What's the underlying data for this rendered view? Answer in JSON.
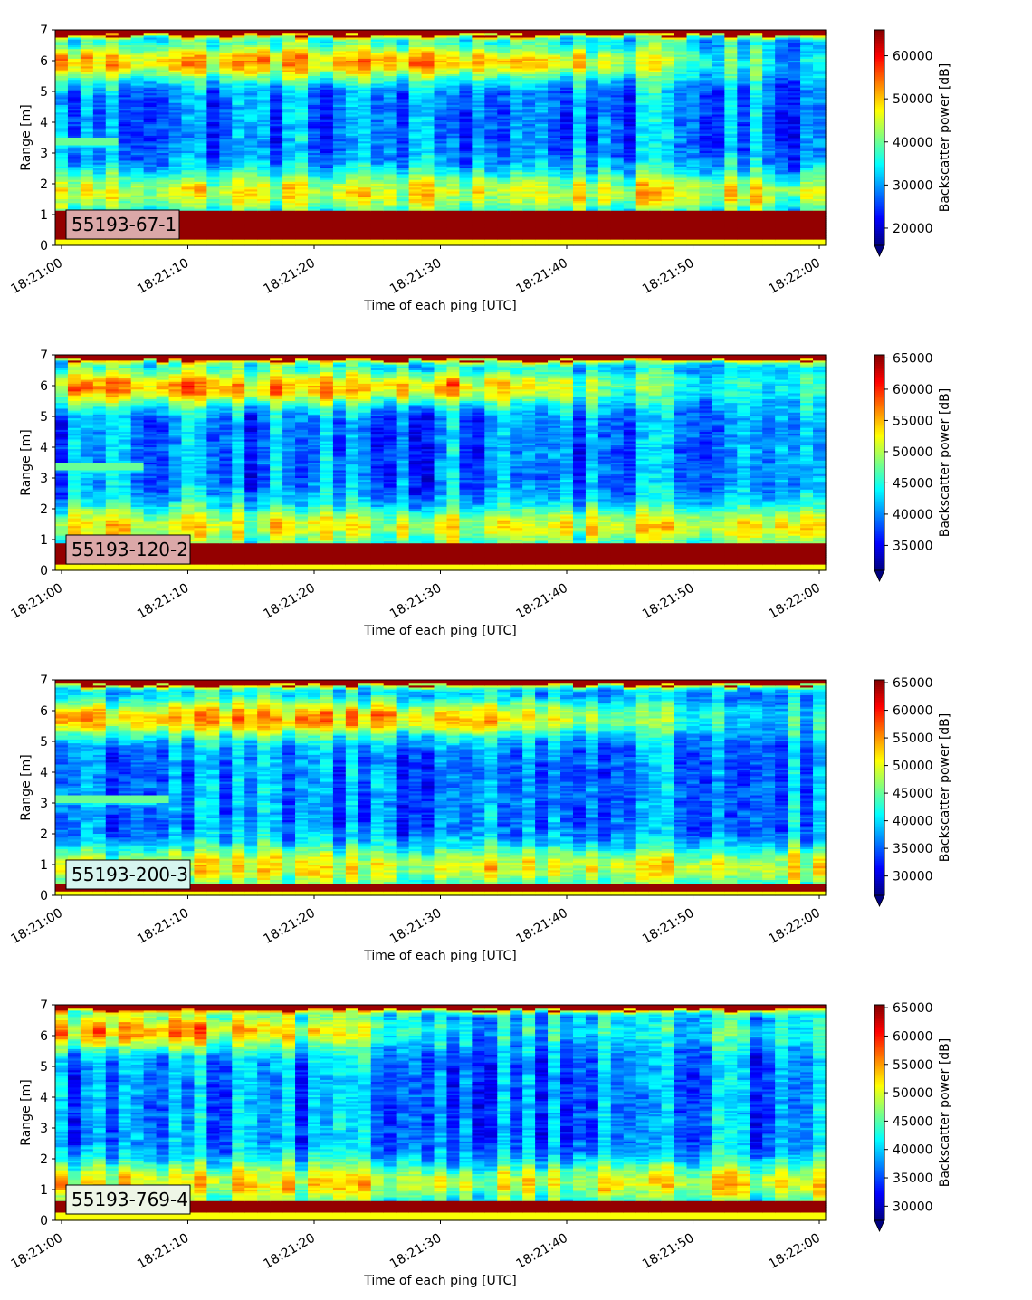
{
  "chart_data": [
    {
      "type": "heatmap",
      "badge": "55193-67-1",
      "badge_color": "#dba8a8",
      "xlabel": "Time of each ping [UTC]",
      "ylabel": "Range [m]",
      "colorbar_label": "Backscatter power [dB]",
      "colormap": "jet",
      "xlim": [
        "18:20:59.5",
        "18:22:00.5"
      ],
      "x_ticks": [
        "18:21:00",
        "18:21:10",
        "18:21:20",
        "18:21:30",
        "18:21:40",
        "18:21:50",
        "18:22:00"
      ],
      "ylim": [
        0,
        7
      ],
      "y_ticks": [
        "0",
        "1",
        "2",
        "3",
        "4",
        "5",
        "6",
        "7"
      ],
      "clim": [
        16000,
        66000
      ],
      "colorbar_ticks": [
        "20000",
        "30000",
        "40000",
        "50000",
        "60000"
      ],
      "colorbar_extend": "min",
      "profile": {
        "floor_range": [
          0.2,
          1.15
        ],
        "band_center": 6.0,
        "band_fades_after": "18:21:35",
        "thin_line_range": 3.4,
        "thin_line_ends": "18:21:05"
      }
    },
    {
      "type": "heatmap",
      "badge": "55193-120-2",
      "badge_color": "#dba8a8",
      "xlabel": "Time of each ping [UTC]",
      "ylabel": "Range [m]",
      "colorbar_label": "Backscatter power [dB]",
      "colormap": "jet",
      "xlim": [
        "18:20:59.5",
        "18:22:00.5"
      ],
      "x_ticks": [
        "18:21:00",
        "18:21:10",
        "18:21:20",
        "18:21:30",
        "18:21:40",
        "18:21:50",
        "18:22:00"
      ],
      "ylim": [
        0,
        7
      ],
      "y_ticks": [
        "0",
        "1",
        "2",
        "3",
        "4",
        "5",
        "6",
        "7"
      ],
      "clim": [
        31000,
        65500
      ],
      "colorbar_ticks": [
        "35000",
        "40000",
        "45000",
        "50000",
        "55000",
        "60000",
        "65000"
      ],
      "colorbar_extend": "min",
      "profile": {
        "floor_range": [
          0.2,
          0.85
        ],
        "band_center": 6.0,
        "band_fades_after": "18:21:30",
        "thin_line_range": 3.4,
        "thin_line_ends": "18:21:07"
      }
    },
    {
      "type": "heatmap",
      "badge": "55193-200-3",
      "badge_color": "#d6f5ef",
      "xlabel": "Time of each ping [UTC]",
      "ylabel": "Range [m]",
      "colorbar_label": "Backscatter power [dB]",
      "colormap": "jet",
      "xlim": [
        "18:20:59.5",
        "18:22:00.5"
      ],
      "x_ticks": [
        "18:21:00",
        "18:21:10",
        "18:21:20",
        "18:21:30",
        "18:21:40",
        "18:21:50",
        "18:22:00"
      ],
      "ylim": [
        0,
        7
      ],
      "y_ticks": [
        "0",
        "1",
        "2",
        "3",
        "4",
        "5",
        "6",
        "7"
      ],
      "clim": [
        26500,
        65500
      ],
      "colorbar_ticks": [
        "30000",
        "35000",
        "40000",
        "45000",
        "50000",
        "55000",
        "60000",
        "65000"
      ],
      "colorbar_extend": "min",
      "profile": {
        "floor_range": [
          0.15,
          0.35
        ],
        "band_center": 5.8,
        "band_fades_after": "18:21:33",
        "thin_line_range": 3.1,
        "thin_line_ends": "18:21:09"
      }
    },
    {
      "type": "heatmap",
      "badge": "55193-769-4",
      "badge_color": "#eef6e6",
      "xlabel": "Time of each ping [UTC]",
      "ylabel": "Range [m]",
      "colorbar_label": "Backscatter power [dB]",
      "colormap": "jet",
      "xlim": [
        "18:20:59.5",
        "18:22:00.5"
      ],
      "x_ticks": [
        "18:21:00",
        "18:21:10",
        "18:21:20",
        "18:21:30",
        "18:21:40",
        "18:21:50",
        "18:22:00"
      ],
      "ylim": [
        0,
        7
      ],
      "y_ticks": [
        "0",
        "1",
        "2",
        "3",
        "4",
        "5",
        "6",
        "7"
      ],
      "clim": [
        27500,
        65500
      ],
      "colorbar_ticks": [
        "30000",
        "35000",
        "40000",
        "45000",
        "50000",
        "55000",
        "60000",
        "65000"
      ],
      "colorbar_extend": "min",
      "profile": {
        "floor_range": [
          0.25,
          0.65
        ],
        "band_center": 6.2,
        "band_fades_after": "18:21:10",
        "thin_line_range": null,
        "thin_line_ends": null
      }
    }
  ]
}
